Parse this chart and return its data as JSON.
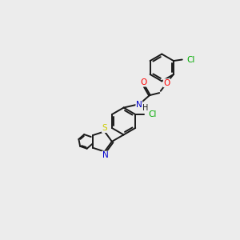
{
  "background_color": "#ececec",
  "bond_color": "#1a1a1a",
  "atom_colors": {
    "O": "#ff0000",
    "N": "#0000cc",
    "S": "#cccc00",
    "Cl": "#00aa00",
    "C": "#1a1a1a",
    "H": "#1a1a1a"
  },
  "figsize": [
    3.0,
    3.0
  ],
  "dpi": 100,
  "lw": 1.4,
  "fontsize": 7.5
}
